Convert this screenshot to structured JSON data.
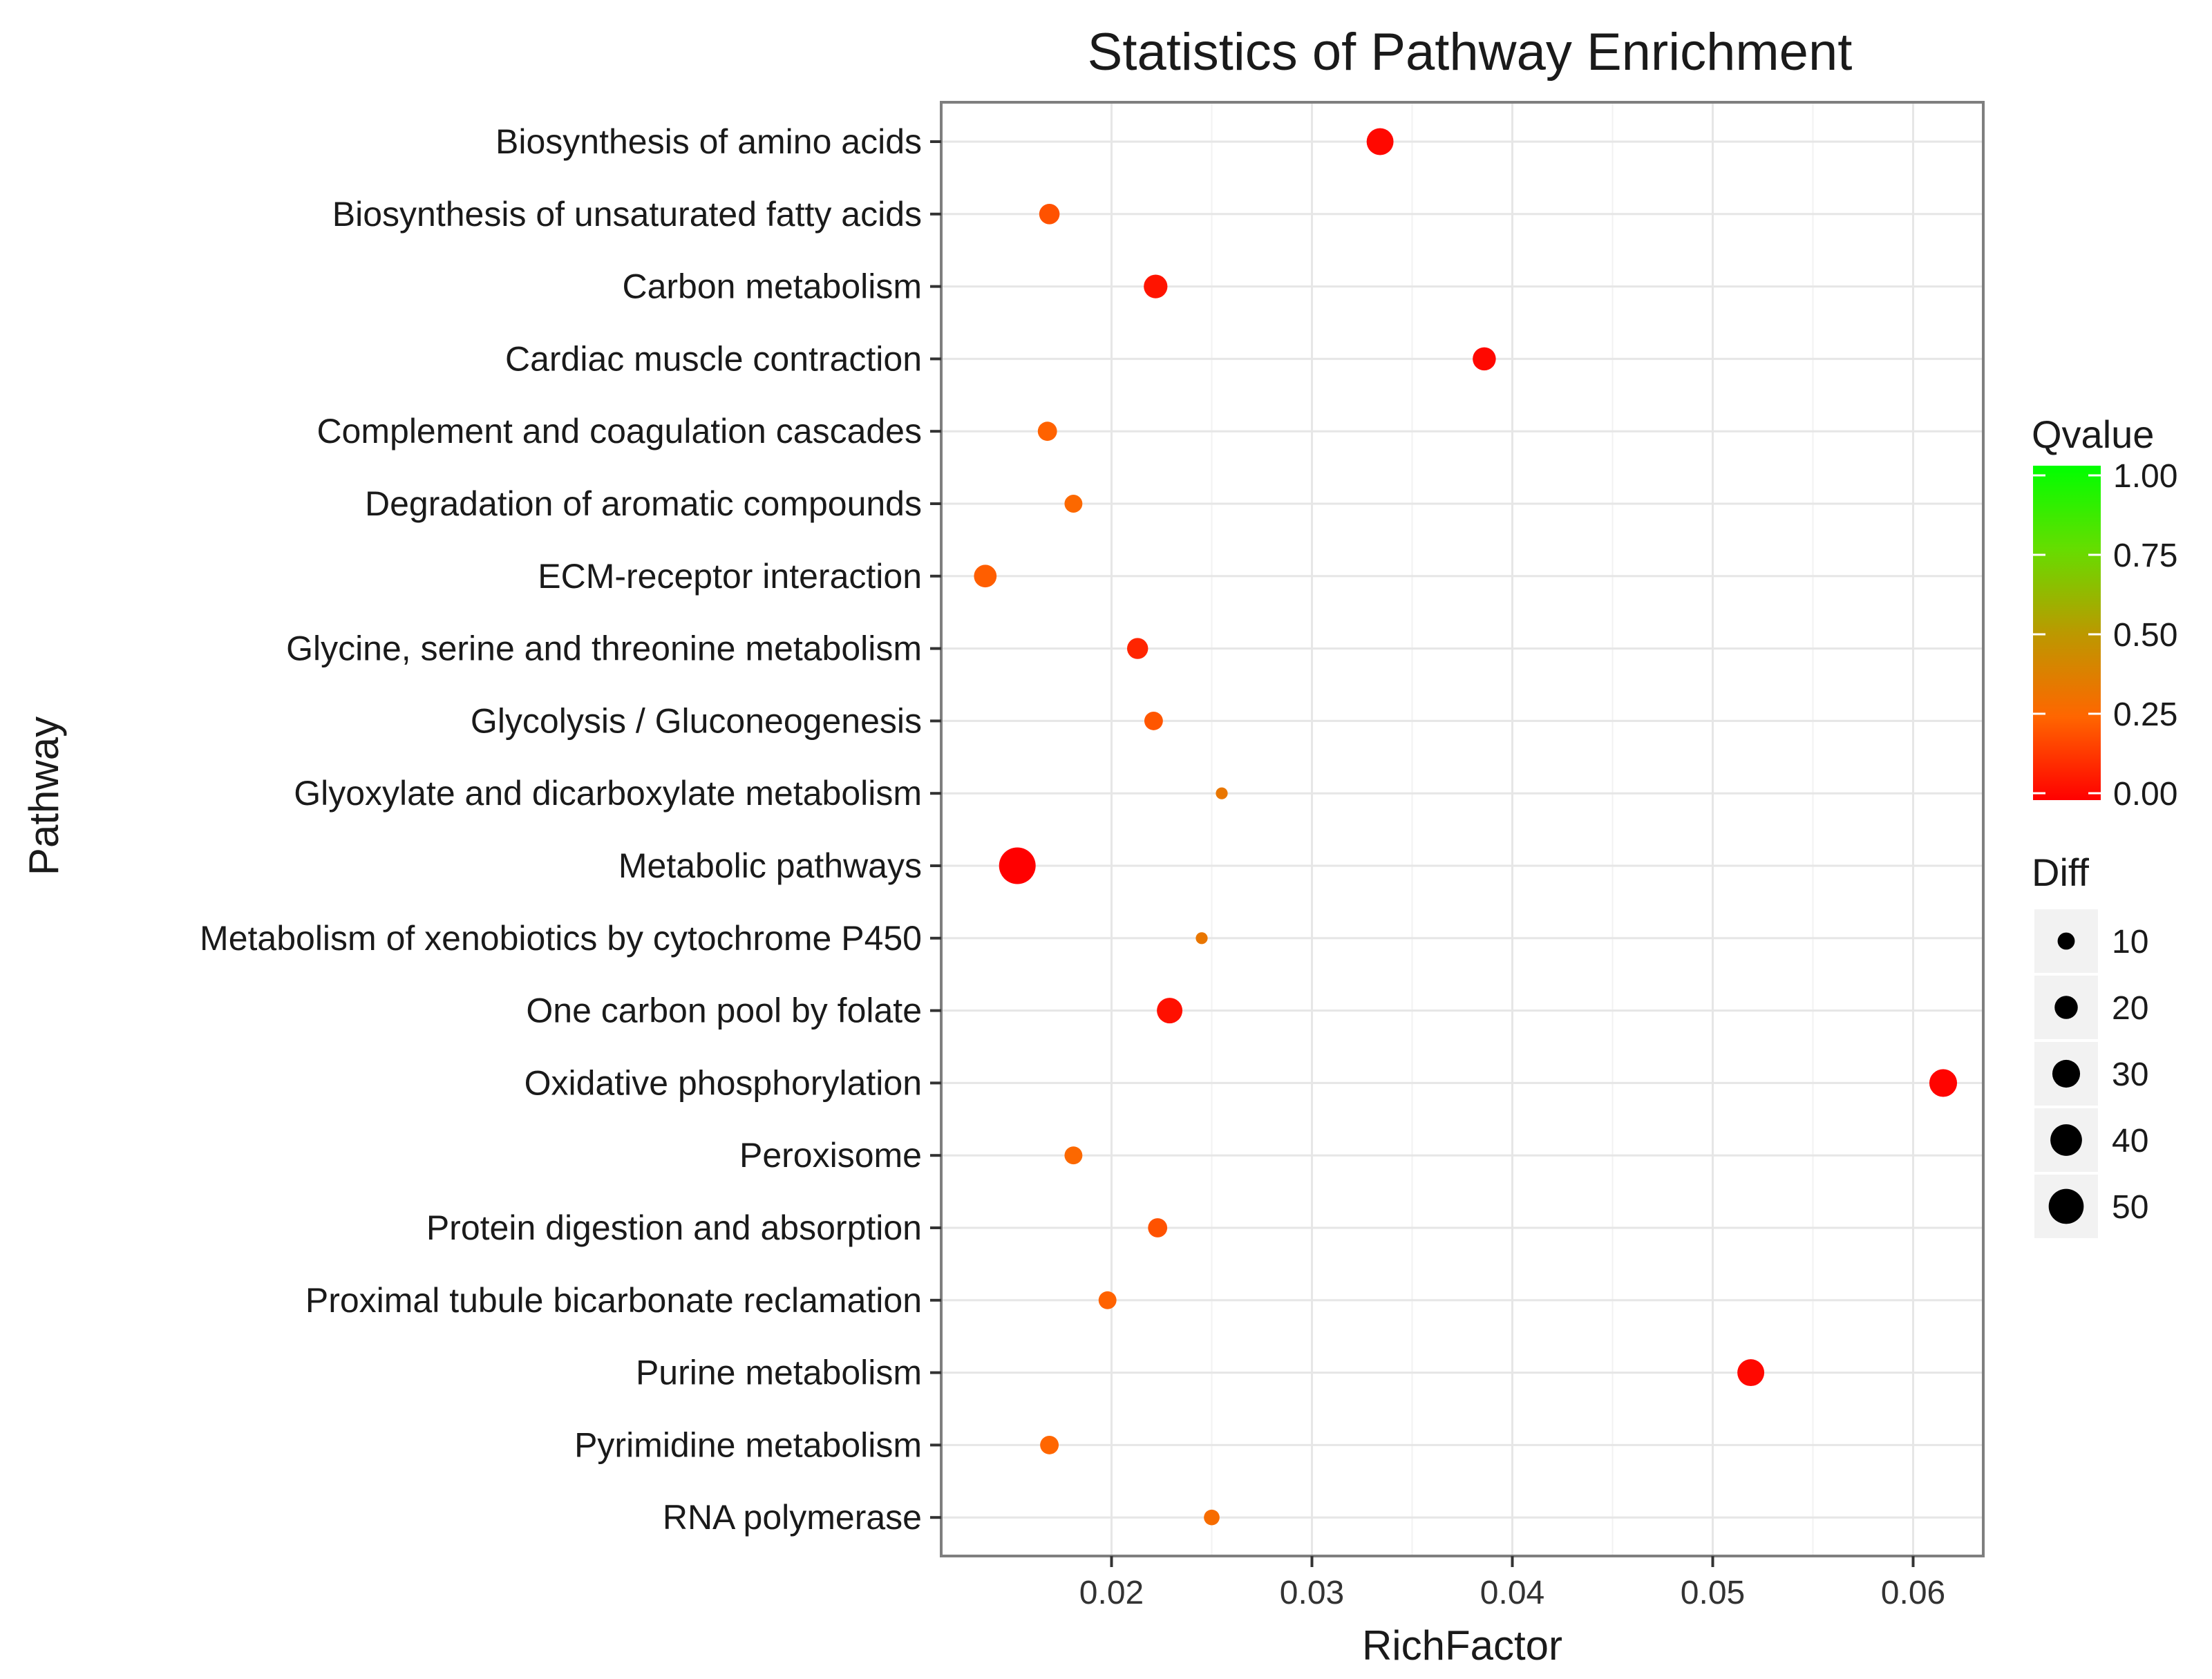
{
  "chart_data": {
    "type": "scatter",
    "title": "Statistics of Pathway Enrichment",
    "xlabel": "RichFactor",
    "ylabel": "Pathway",
    "xlim": [
      0.0115,
      0.0635
    ],
    "xticks": [
      0.02,
      0.03,
      0.04,
      0.05,
      0.06
    ],
    "xtick_labels": [
      "0.02",
      "0.03",
      "0.04",
      "0.05",
      "0.06"
    ],
    "grid": true,
    "legend_position": "right",
    "color_legend": {
      "title": "Qvalue",
      "range": [
        0,
        1
      ],
      "ticks": [
        "1.00",
        "0.75",
        "0.50",
        "0.25",
        "0.00"
      ],
      "low_color": "#ff0000",
      "high_color": "#00ff00"
    },
    "size_legend": {
      "title": "Diff",
      "values": [
        10,
        20,
        30,
        40,
        50
      ],
      "labels": [
        "10",
        "20",
        "30",
        "40",
        "50"
      ]
    },
    "points": [
      {
        "pathway": "RNA polymerase",
        "rich_factor": 0.025,
        "qvalue": 0.28,
        "diff": 8
      },
      {
        "pathway": "Pyrimidine metabolism",
        "rich_factor": 0.0169,
        "qvalue": 0.25,
        "diff": 12
      },
      {
        "pathway": "Purine metabolism",
        "rich_factor": 0.0519,
        "qvalue": 0.02,
        "diff": 28
      },
      {
        "pathway": "Proximal tubule bicarbonate reclamation",
        "rich_factor": 0.0198,
        "qvalue": 0.24,
        "diff": 11
      },
      {
        "pathway": "Protein digestion and absorption",
        "rich_factor": 0.0223,
        "qvalue": 0.2,
        "diff": 13
      },
      {
        "pathway": "Peroxisome",
        "rich_factor": 0.0181,
        "qvalue": 0.26,
        "diff": 11
      },
      {
        "pathway": "Oxidative phosphorylation",
        "rich_factor": 0.0615,
        "qvalue": 0.01,
        "diff": 30
      },
      {
        "pathway": "One carbon pool by folate",
        "rich_factor": 0.0229,
        "qvalue": 0.04,
        "diff": 25
      },
      {
        "pathway": "Metabolism of xenobiotics by cytochrome P450",
        "rich_factor": 0.0245,
        "qvalue": 0.33,
        "diff": 4
      },
      {
        "pathway": "Metabolic pathways",
        "rich_factor": 0.0153,
        "qvalue": 0.0,
        "diff": 55
      },
      {
        "pathway": "Glyoxylate and dicarboxylate metabolism",
        "rich_factor": 0.0255,
        "qvalue": 0.33,
        "diff": 4
      },
      {
        "pathway": "Glycolysis / Gluconeogenesis",
        "rich_factor": 0.0221,
        "qvalue": 0.21,
        "diff": 12
      },
      {
        "pathway": "Glycine, serine and threonine metabolism",
        "rich_factor": 0.0213,
        "qvalue": 0.09,
        "diff": 16
      },
      {
        "pathway": "ECM-receptor interaction",
        "rich_factor": 0.0137,
        "qvalue": 0.23,
        "diff": 19
      },
      {
        "pathway": "Degradation of aromatic compounds",
        "rich_factor": 0.0181,
        "qvalue": 0.26,
        "diff": 11
      },
      {
        "pathway": "Complement and coagulation cascades",
        "rich_factor": 0.0168,
        "qvalue": 0.24,
        "diff": 13
      },
      {
        "pathway": "Cardiac muscle contraction",
        "rich_factor": 0.0386,
        "qvalue": 0.02,
        "diff": 20
      },
      {
        "pathway": "Carbon metabolism",
        "rich_factor": 0.0222,
        "qvalue": 0.05,
        "diff": 21
      },
      {
        "pathway": "Biosynthesis of unsaturated fatty acids",
        "rich_factor": 0.0169,
        "qvalue": 0.2,
        "diff": 15
      },
      {
        "pathway": "Biosynthesis of amino acids",
        "rich_factor": 0.0334,
        "qvalue": 0.02,
        "diff": 28
      }
    ]
  }
}
